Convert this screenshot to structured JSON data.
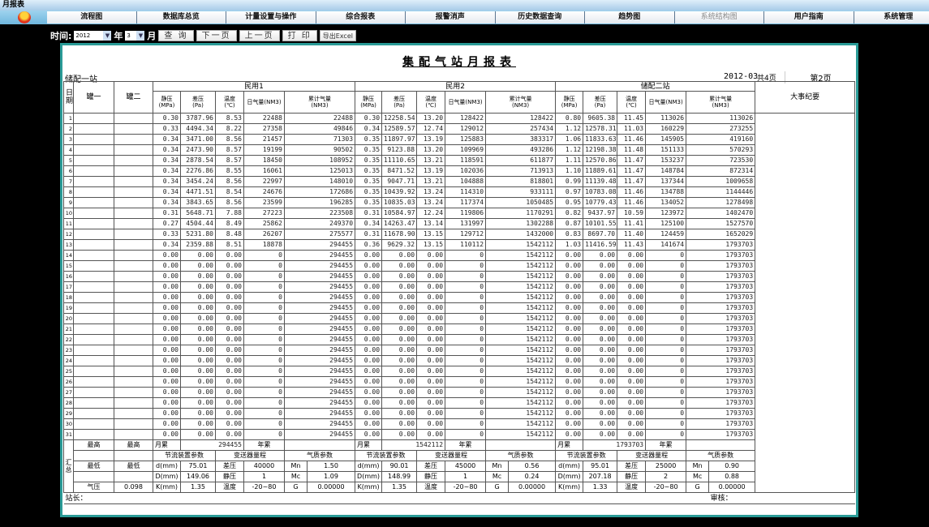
{
  "window": {
    "title": "月报表"
  },
  "menu": [
    "流程图",
    "数据库总览",
    "计量设置与操作",
    "综合报表",
    "报警消声",
    "历史数据查询",
    "趋势图",
    "系统结构图",
    "用户指南",
    "系统管理"
  ],
  "toolbar": {
    "time_label": "时间:",
    "year": "2012",
    "year_unit": "年",
    "month": "3",
    "month_unit": "月",
    "query": "查 询",
    "next": "下一页",
    "prev": "上一页",
    "print": "打 印",
    "export": "导出Excel"
  },
  "report": {
    "title": "集配气站月报表",
    "station": "储配一站",
    "date": "2012-03",
    "total_pages": "共4页",
    "page": "第2页",
    "headers": {
      "day": "日期",
      "tank1": "罐一",
      "tank2": "罐二",
      "groups": [
        "民用1",
        "民用2",
        "储配二站"
      ],
      "cols": [
        "静压\n(MPa)",
        "差压\n(Pa)",
        "温度\n(℃)",
        "日气量(NM3)",
        "累计气量\n(NM3)"
      ],
      "events": "大事纪要"
    },
    "rows": [
      [
        "1",
        "0.30",
        "3787.96",
        "8.53",
        "22488",
        "22488",
        "0.30",
        "12258.54",
        "13.20",
        "128422",
        "128422",
        "0.80",
        "9605.38",
        "11.45",
        "113026",
        "113026"
      ],
      [
        "2",
        "0.33",
        "4494.34",
        "8.22",
        "27358",
        "49846",
        "0.34",
        "12589.57",
        "12.74",
        "129012",
        "257434",
        "1.12",
        "12578.31",
        "11.03",
        "160229",
        "273255"
      ],
      [
        "3",
        "0.34",
        "3471.00",
        "8.56",
        "21457",
        "71303",
        "0.35",
        "11897.97",
        "13.19",
        "125883",
        "383317",
        "1.06",
        "11833.63",
        "11.46",
        "145905",
        "419160"
      ],
      [
        "4",
        "0.34",
        "2473.90",
        "8.57",
        "19199",
        "90502",
        "0.35",
        "9123.88",
        "13.20",
        "109969",
        "493286",
        "1.12",
        "12198.38",
        "11.48",
        "151133",
        "570293"
      ],
      [
        "5",
        "0.34",
        "2878.54",
        "8.57",
        "18450",
        "108952",
        "0.35",
        "11110.65",
        "13.21",
        "118591",
        "611877",
        "1.11",
        "12570.86",
        "11.47",
        "153237",
        "723530"
      ],
      [
        "6",
        "0.34",
        "2276.86",
        "8.55",
        "16061",
        "125013",
        "0.35",
        "8471.52",
        "13.19",
        "102036",
        "713913",
        "1.10",
        "11889.61",
        "11.47",
        "148784",
        "872314"
      ],
      [
        "7",
        "0.34",
        "3454.24",
        "8.56",
        "22997",
        "148010",
        "0.35",
        "9047.71",
        "13.21",
        "104888",
        "818801",
        "0.99",
        "11139.48",
        "11.47",
        "137344",
        "1009658"
      ],
      [
        "8",
        "0.34",
        "4471.51",
        "8.54",
        "24676",
        "172686",
        "0.35",
        "10439.92",
        "13.24",
        "114310",
        "933111",
        "0.97",
        "10783.08",
        "11.46",
        "134788",
        "1144446"
      ],
      [
        "9",
        "0.34",
        "3843.65",
        "8.56",
        "23599",
        "196285",
        "0.35",
        "10835.03",
        "13.24",
        "117374",
        "1050485",
        "0.95",
        "10779.43",
        "11.46",
        "134052",
        "1278498"
      ],
      [
        "10",
        "0.31",
        "5648.71",
        "7.88",
        "27223",
        "223508",
        "0.31",
        "10584.97",
        "12.24",
        "119806",
        "1170291",
        "0.82",
        "9437.97",
        "10.59",
        "123972",
        "1402470"
      ],
      [
        "11",
        "0.27",
        "4504.44",
        "8.49",
        "25862",
        "249370",
        "0.34",
        "14263.47",
        "13.14",
        "131997",
        "1302288",
        "0.87",
        "10101.55",
        "11.41",
        "125100",
        "1527570"
      ],
      [
        "12",
        "0.33",
        "5231.80",
        "8.48",
        "26207",
        "275577",
        "0.31",
        "11678.90",
        "13.15",
        "129712",
        "1432000",
        "0.83",
        "8697.70",
        "11.40",
        "124459",
        "1652029"
      ],
      [
        "13",
        "0.34",
        "2359.88",
        "8.51",
        "18878",
        "294455",
        "0.36",
        "9629.32",
        "13.15",
        "110112",
        "1542112",
        "1.03",
        "11416.59",
        "11.43",
        "141674",
        "1793703"
      ],
      [
        "14",
        "0.00",
        "0.00",
        "0.00",
        "0",
        "294455",
        "0.00",
        "0.00",
        "0.00",
        "0",
        "1542112",
        "0.00",
        "0.00",
        "0.00",
        "0",
        "1793703"
      ],
      [
        "15",
        "0.00",
        "0.00",
        "0.00",
        "0",
        "294455",
        "0.00",
        "0.00",
        "0.00",
        "0",
        "1542112",
        "0.00",
        "0.00",
        "0.00",
        "0",
        "1793703"
      ],
      [
        "16",
        "0.00",
        "0.00",
        "0.00",
        "0",
        "294455",
        "0.00",
        "0.00",
        "0.00",
        "0",
        "1542112",
        "0.00",
        "0.00",
        "0.00",
        "0",
        "1793703"
      ],
      [
        "17",
        "0.00",
        "0.00",
        "0.00",
        "0",
        "294455",
        "0.00",
        "0.00",
        "0.00",
        "0",
        "1542112",
        "0.00",
        "0.00",
        "0.00",
        "0",
        "1793703"
      ],
      [
        "18",
        "0.00",
        "0.00",
        "0.00",
        "0",
        "294455",
        "0.00",
        "0.00",
        "0.00",
        "0",
        "1542112",
        "0.00",
        "0.00",
        "0.00",
        "0",
        "1793703"
      ],
      [
        "19",
        "0.00",
        "0.00",
        "0.00",
        "0",
        "294455",
        "0.00",
        "0.00",
        "0.00",
        "0",
        "1542112",
        "0.00",
        "0.00",
        "0.00",
        "0",
        "1793703"
      ],
      [
        "20",
        "0.00",
        "0.00",
        "0.00",
        "0",
        "294455",
        "0.00",
        "0.00",
        "0.00",
        "0",
        "1542112",
        "0.00",
        "0.00",
        "0.00",
        "0",
        "1793703"
      ],
      [
        "21",
        "0.00",
        "0.00",
        "0.00",
        "0",
        "294455",
        "0.00",
        "0.00",
        "0.00",
        "0",
        "1542112",
        "0.00",
        "0.00",
        "0.00",
        "0",
        "1793703"
      ],
      [
        "22",
        "0.00",
        "0.00",
        "0.00",
        "0",
        "294455",
        "0.00",
        "0.00",
        "0.00",
        "0",
        "1542112",
        "0.00",
        "0.00",
        "0.00",
        "0",
        "1793703"
      ],
      [
        "23",
        "0.00",
        "0.00",
        "0.00",
        "0",
        "294455",
        "0.00",
        "0.00",
        "0.00",
        "0",
        "1542112",
        "0.00",
        "0.00",
        "0.00",
        "0",
        "1793703"
      ],
      [
        "24",
        "0.00",
        "0.00",
        "0.00",
        "0",
        "294455",
        "0.00",
        "0.00",
        "0.00",
        "0",
        "1542112",
        "0.00",
        "0.00",
        "0.00",
        "0",
        "1793703"
      ],
      [
        "25",
        "0.00",
        "0.00",
        "0.00",
        "0",
        "294455",
        "0.00",
        "0.00",
        "0.00",
        "0",
        "1542112",
        "0.00",
        "0.00",
        "0.00",
        "0",
        "1793703"
      ],
      [
        "26",
        "0.00",
        "0.00",
        "0.00",
        "0",
        "294455",
        "0.00",
        "0.00",
        "0.00",
        "0",
        "1542112",
        "0.00",
        "0.00",
        "0.00",
        "0",
        "1793703"
      ],
      [
        "27",
        "0.00",
        "0.00",
        "0.00",
        "0",
        "294455",
        "0.00",
        "0.00",
        "0.00",
        "0",
        "1542112",
        "0.00",
        "0.00",
        "0.00",
        "0",
        "1793703"
      ],
      [
        "28",
        "0.00",
        "0.00",
        "0.00",
        "0",
        "294455",
        "0.00",
        "0.00",
        "0.00",
        "0",
        "1542112",
        "0.00",
        "0.00",
        "0.00",
        "0",
        "1793703"
      ],
      [
        "29",
        "0.00",
        "0.00",
        "0.00",
        "0",
        "294455",
        "0.00",
        "0.00",
        "0.00",
        "0",
        "1542112",
        "0.00",
        "0.00",
        "0.00",
        "0",
        "1793703"
      ],
      [
        "30",
        "0.00",
        "0.00",
        "0.00",
        "0",
        "294455",
        "0.00",
        "0.00",
        "0.00",
        "0",
        "1542112",
        "0.00",
        "0.00",
        "0.00",
        "0",
        "1793703"
      ],
      [
        "31",
        "0.00",
        "0.00",
        "0.00",
        "0",
        "294455",
        "0.00",
        "0.00",
        "0.00",
        "0",
        "1542112",
        "0.00",
        "0.00",
        "0.00",
        "0",
        "1793703"
      ]
    ],
    "summary": {
      "label": "汇总",
      "max": "最高",
      "min": "最低",
      "pressure_label": "气压",
      "pressure": "0.098",
      "month_label": "月累",
      "year_label": "年累",
      "orifice": "节流装置参数",
      "transmitter": "变送器量程",
      "gas": "气质参数",
      "labels": {
        "d": "d(mm)",
        "D": "D(mm)",
        "K": "K(mm)",
        "dp": "差压",
        "sp": "静压",
        "temp": "温度",
        "mn": "Mn",
        "mc": "Mc",
        "g": "G"
      },
      "groups": [
        {
          "month_total": "294455",
          "d": "75.01",
          "D": "149.06",
          "K": "1.35",
          "dp": "40000",
          "sp": "1",
          "temp": "-20~80",
          "mn": "1.50",
          "mc": "1.09",
          "g": "0.00000"
        },
        {
          "month_total": "1542112",
          "d": "90.01",
          "D": "148.99",
          "K": "1.35",
          "dp": "45000",
          "sp": "1",
          "temp": "-20~80",
          "mn": "0.56",
          "mc": "0.24",
          "g": "0.00000"
        },
        {
          "month_total": "1793703",
          "d": "95.01",
          "D": "207.18",
          "K": "1.33",
          "dp": "25000",
          "sp": "2",
          "temp": "-20~80",
          "mn": "0.90",
          "mc": "0.88",
          "g": "0.00000"
        }
      ]
    },
    "footer": {
      "manager": "站长：",
      "reviewer": "审核："
    }
  },
  "colors": {
    "panel_border": "#2a9b97",
    "background": "#000000",
    "menubar": "#6fb7de"
  }
}
